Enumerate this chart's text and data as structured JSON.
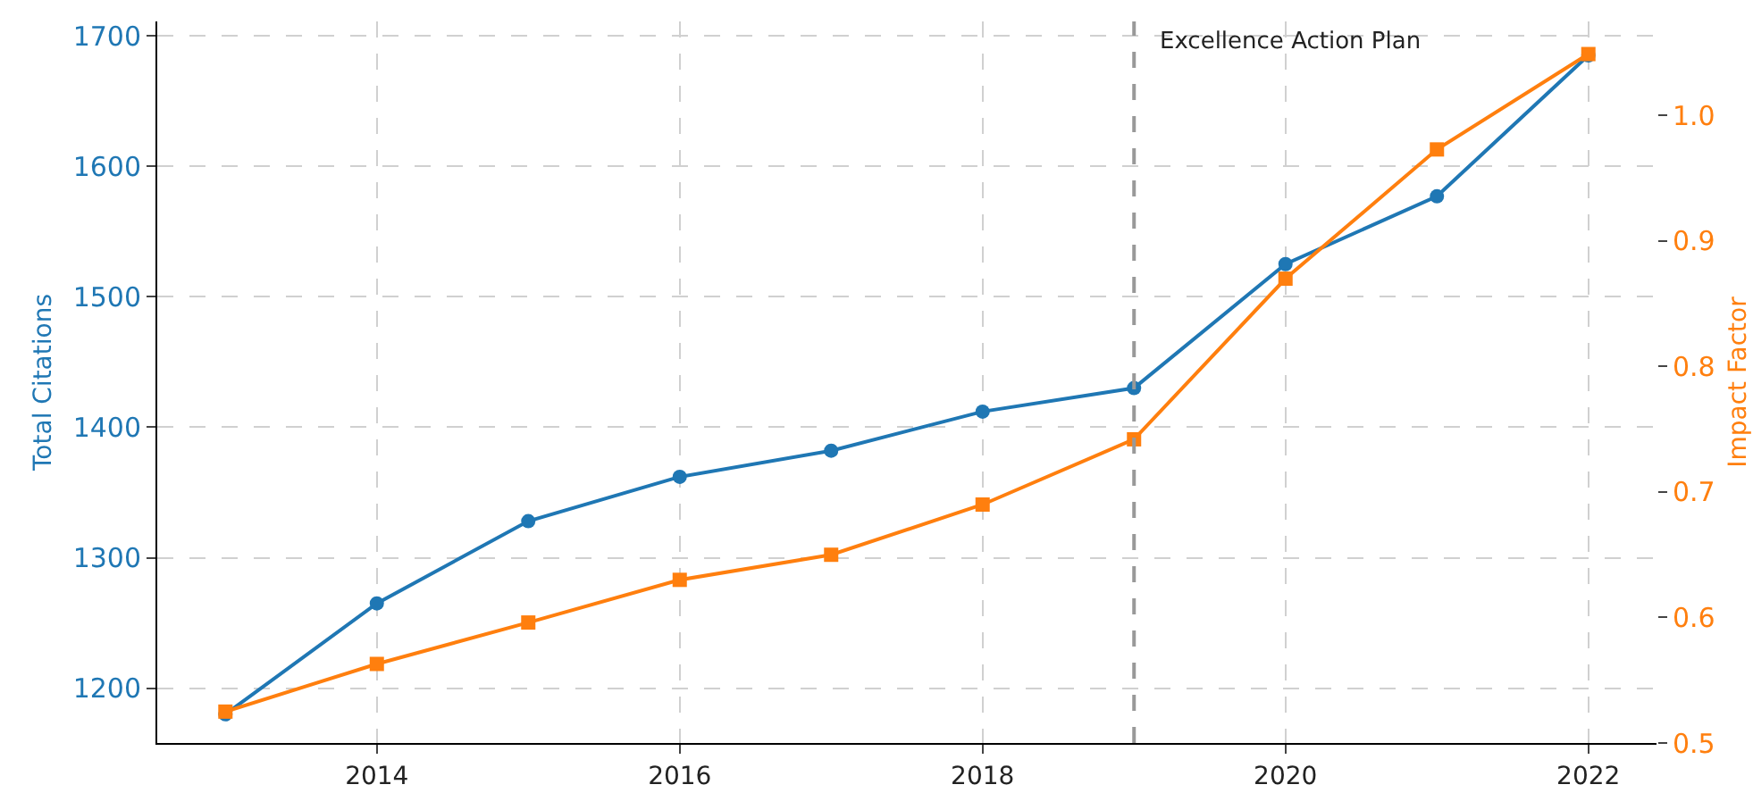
{
  "chart_data": {
    "type": "line",
    "ylabel": "Total Citations",
    "y2label": "Impact Factor",
    "x": [
      2013,
      2014,
      2015,
      2016,
      2017,
      2018,
      2019,
      2020,
      2021,
      2022
    ],
    "series": [
      {
        "color": "#1f77b4",
        "marker": "circle",
        "values": [
          1180,
          1265,
          1328,
          1362,
          1382,
          1412,
          1430,
          1525,
          1577,
          1685
        ]
      },
      {
        "color": "#ff7f0e",
        "marker": "square",
        "axis": "y2",
        "values": [
          0.525,
          0.563,
          0.596,
          0.63,
          0.65,
          0.69,
          0.742,
          0.87,
          0.973,
          1.049
        ]
      }
    ],
    "xlim": [
      2012.55,
      2022.45
    ],
    "xticks": [
      2014,
      2016,
      2018,
      2020,
      2022
    ],
    "ylim": [
      1158,
      1711
    ],
    "yticks": [
      1200,
      1300,
      1400,
      1500,
      1600,
      1700
    ],
    "y2lim": [
      0.5,
      1.075
    ],
    "y2ticks": [
      0.5,
      0.6,
      0.7,
      0.8,
      0.9,
      {
        "value": 1.0,
        "label": "1.0"
      }
    ],
    "ref_lines": [
      {
        "axis": "x",
        "value": 2019,
        "label": "Excellence Action Plan",
        "color": "#999999",
        "line_style": "dashed"
      }
    ],
    "grid": true,
    "line_style": "solid"
  }
}
